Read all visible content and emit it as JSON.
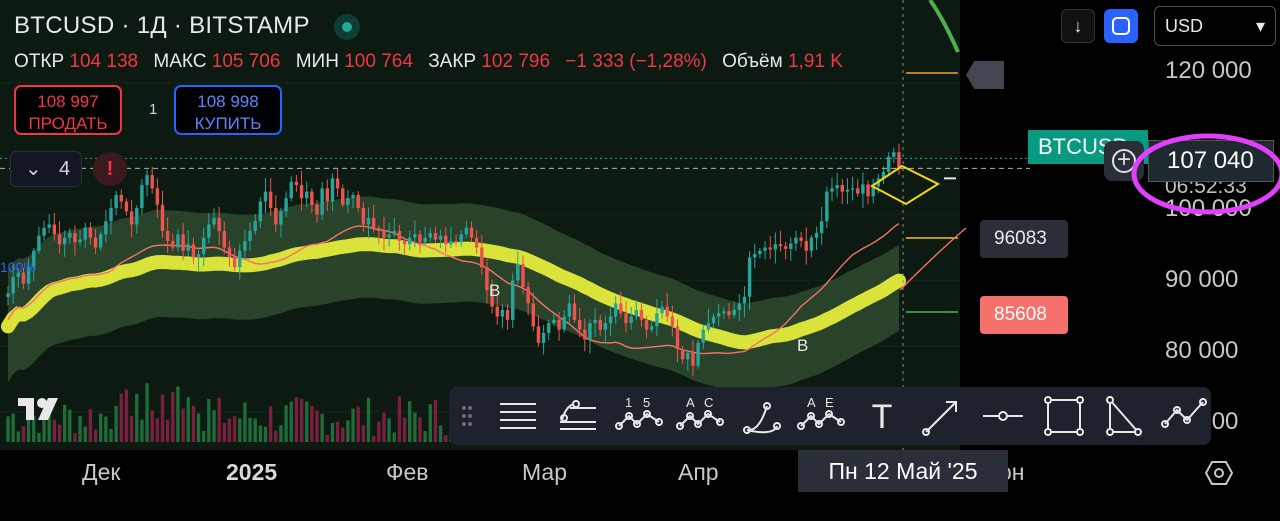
{
  "header": {
    "title": "BTCUSD · 1Д · BITSTAMP",
    "ohlc": [
      {
        "label": "ОТКР",
        "value": "104 138"
      },
      {
        "label": "МАКС",
        "value": "105 706"
      },
      {
        "label": "МИН",
        "value": "100 764"
      },
      {
        "label": "ЗАКР",
        "value": "102 796"
      }
    ],
    "change": "−1 333 (−1,28%)",
    "volume_label": "Объём",
    "volume_value": "1,91 K"
  },
  "trade": {
    "sell_price": "108 997",
    "sell_label": "ПРОДАТЬ",
    "spread": "1",
    "buy_price": "108 998",
    "buy_label": "КУПИТЬ"
  },
  "indicators": {
    "collapse_count": "4",
    "warning_symbol": "!"
  },
  "toolbar_top": {
    "down_icon": "↓",
    "currency": "USD"
  },
  "price_axis": {
    "ticks": [
      "120 000",
      "100 000",
      "90 000",
      "80 000",
      "70 000"
    ],
    "symbol_tag": "BTCUSD",
    "last_price": "107 040",
    "countdown": "06:52:33",
    "level_high": "96083",
    "level_low": "85608"
  },
  "time_axis": {
    "labels": [
      "Дек",
      "2025",
      "Фев",
      "Мар",
      "Апр",
      "Июн"
    ],
    "cursor_date": "Пн 12 Май '25"
  },
  "annotations": {
    "marker_b1": "B",
    "marker_b2": "B",
    "pnl_text": "100%",
    "logo": "TV"
  },
  "drawing_tools": [
    {
      "name": "horizontal-lines"
    },
    {
      "name": "fib-retracement"
    },
    {
      "name": "wave-15",
      "label_a": "1",
      "label_b": "5"
    },
    {
      "name": "wave-ac",
      "label_a": "A",
      "label_b": "C"
    },
    {
      "name": "arc"
    },
    {
      "name": "wave-ae",
      "label_a": "A",
      "label_b": "E"
    },
    {
      "name": "text",
      "label": "T"
    },
    {
      "name": "arrow"
    },
    {
      "name": "horizontal-ray"
    },
    {
      "name": "rectangle"
    },
    {
      "name": "triangle"
    },
    {
      "name": "trend-polyline"
    }
  ],
  "colors": {
    "background": "#000000",
    "up": "#26a69a",
    "down": "#ef5350",
    "ma_highlight": "#e4ec3a",
    "ma_band": "#2f4a2f",
    "red_ma": "#f7716c",
    "green_ma": "#4caf50",
    "accent": "#2962ff",
    "annotation": "#e040fb"
  },
  "chart_data": {
    "type": "candlestick",
    "symbol": "BTCUSD",
    "timeframe": "1Д",
    "exchange": "BITSTAMP",
    "ylim": [
      68000,
      122000
    ],
    "start_date": "2024-11-10",
    "current_candle": {
      "open": 104138,
      "high": 105706,
      "low": 100764,
      "close": 102796
    },
    "levels": [
      96083,
      85608,
      120000
    ],
    "closes": [
      88000,
      90500,
      91200,
      89500,
      92000,
      94500,
      96800,
      98000,
      98500,
      97000,
      95500,
      96500,
      97200,
      95800,
      96200,
      98000,
      96500,
      95000,
      97000,
      99000,
      101000,
      103000,
      102000,
      100500,
      98500,
      101000,
      104500,
      106000,
      104000,
      101500,
      97500,
      96000,
      95000,
      97000,
      94500,
      95500,
      93500,
      94000,
      96500,
      98500,
      99500,
      97500,
      95000,
      93500,
      92000,
      94500,
      96000,
      97500,
      99000,
      102000,
      103500,
      101000,
      98500,
      100500,
      102500,
      105000,
      104500,
      102500,
      103500,
      101500,
      100000,
      104000,
      102000,
      105500,
      104000,
      101500,
      102500,
      103000,
      101000,
      98500,
      99500,
      98000,
      97500,
      96500,
      97000,
      97500,
      96000,
      95500,
      96500,
      97000,
      95800,
      96500,
      97200,
      96200,
      96800,
      95500,
      96000,
      95800,
      97000,
      98000,
      96500,
      95000,
      92000,
      88500,
      86000,
      84500,
      85500,
      84000,
      90000,
      92500,
      89000,
      86500,
      83000,
      80500,
      82000,
      83500,
      84000,
      82500,
      84500,
      86500,
      84000,
      82500,
      81000,
      83500,
      84000,
      82500,
      83500,
      84500,
      86500,
      85000,
      83500,
      84500,
      85500,
      84000,
      82500,
      83000,
      85000,
      86000,
      84500,
      83000,
      79500,
      78000,
      79000,
      77000,
      80500,
      82500,
      83500,
      84500,
      85000,
      85300,
      84700,
      85500,
      86500,
      87500,
      93500,
      94000,
      94500,
      95000,
      94700,
      95500,
      95200,
      94800,
      95600,
      96500,
      96000,
      94500,
      96500,
      97200,
      99000,
      103500,
      104000,
      104500,
      103500,
      103800,
      104000,
      103200,
      104600,
      102800,
      104300,
      105500,
      106500,
      108800,
      109500,
      107040
    ]
  }
}
